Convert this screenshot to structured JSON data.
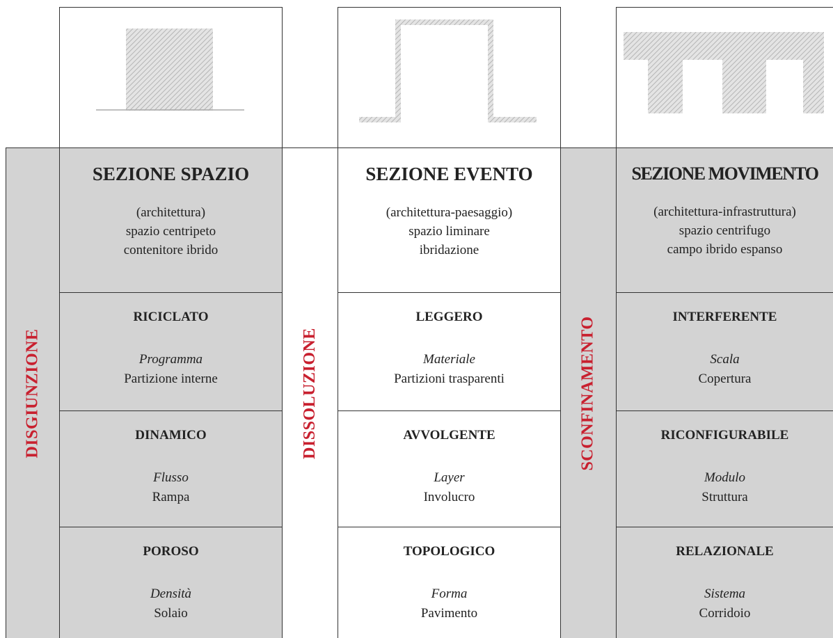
{
  "columns": [
    {
      "side_label": "DISGIUNZIONE",
      "title": "SEZIONE SPAZIO",
      "subtitle": [
        "(architettura)",
        "spazio centripeto",
        "contenitore ibrido"
      ],
      "rows": [
        {
          "title": "RICICLATO",
          "italic": "Programma",
          "text": "Partizione interne"
        },
        {
          "title": "DINAMICO",
          "italic": "Flusso",
          "text": "Rampa"
        },
        {
          "title": "POROSO",
          "italic": "Densità",
          "text": "Solaio"
        }
      ]
    },
    {
      "side_label": "DISSOLUZIONE",
      "title": "SEZIONE EVENTO",
      "subtitle": [
        "(architettura-paesaggio)",
        "spazio liminare",
        "ibridazione"
      ],
      "rows": [
        {
          "title": "LEGGERO",
          "italic": "Materiale",
          "text": "Partizioni trasparenti"
        },
        {
          "title": "AVVOLGENTE",
          "italic": "Layer",
          "text": "Involucro"
        },
        {
          "title": "TOPOLOGICO",
          "italic": "Forma",
          "text": "Pavimento"
        }
      ]
    },
    {
      "side_label": "SCONFINAMENTO",
      "title": "SEZIONE MOVIMENTO",
      "subtitle": [
        "(architettura-infrastruttura)",
        "spazio centrifugo",
        "campo ibrido espanso"
      ],
      "rows": [
        {
          "title": "INTERFERENTE",
          "italic": "Scala",
          "text": "Copertura"
        },
        {
          "title": "RICONFIGURABILE",
          "italic": "Modulo",
          "text": "Struttura"
        },
        {
          "title": "RELAZIONALE",
          "italic": "Sistema",
          "text": "Corridoio"
        }
      ]
    }
  ]
}
